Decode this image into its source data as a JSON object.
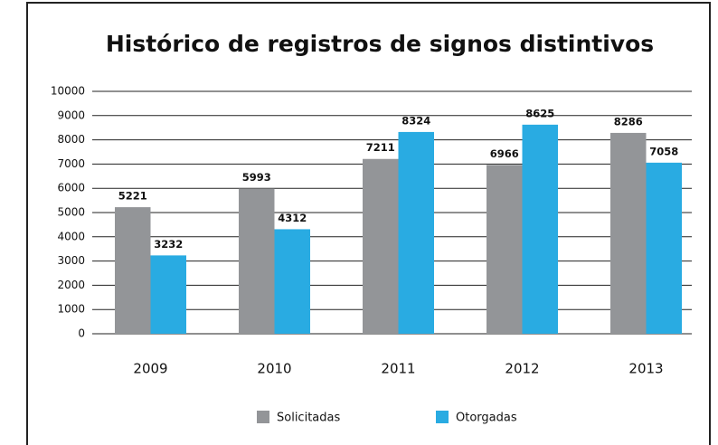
{
  "chart_data": {
    "type": "bar",
    "title": "Histórico de registros de signos distintivos",
    "categories": [
      "2009",
      "2010",
      "2011",
      "2012",
      "2013"
    ],
    "series": [
      {
        "name": "Solicitadas",
        "color": "#939598",
        "values": [
          5221,
          5993,
          7211,
          6966,
          8286
        ]
      },
      {
        "name": "Otorgadas",
        "color": "#29abe2",
        "values": [
          3232,
          4312,
          8324,
          8625,
          7058
        ]
      }
    ],
    "ylim": [
      0,
      10000
    ],
    "yticks": [
      0,
      1000,
      2000,
      3000,
      4000,
      5000,
      6000,
      7000,
      8000,
      9000,
      10000
    ],
    "grid": true,
    "legend": "bottom"
  }
}
